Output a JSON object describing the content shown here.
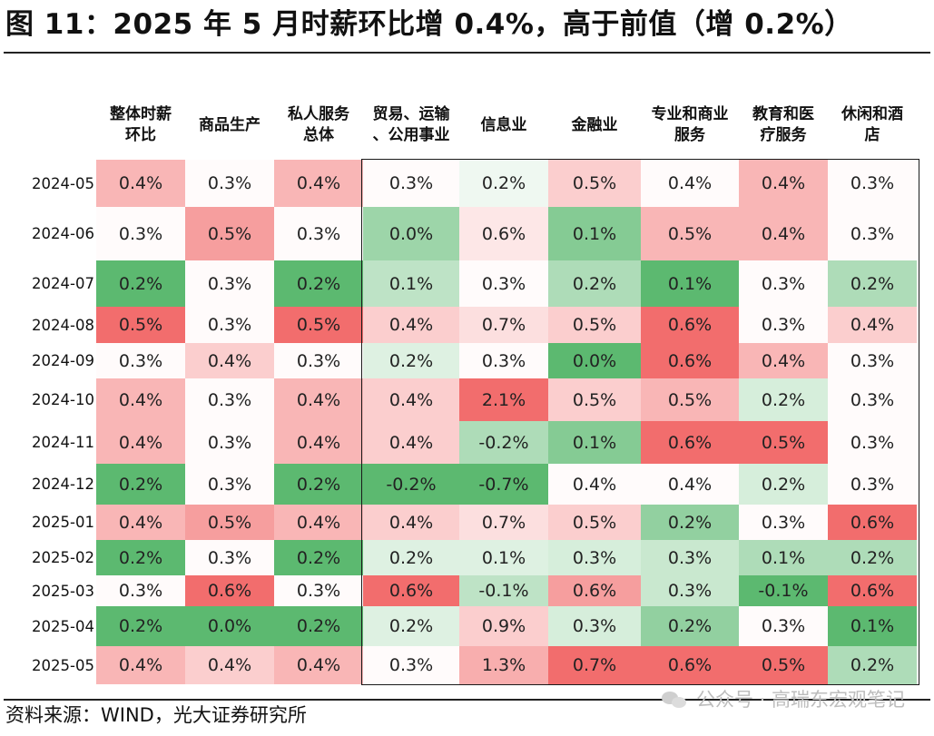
{
  "title": "图 11：2025 年 5 月时薪环比增 0.4%，高于前值（增 0.2%）",
  "source": "资料来源：WIND，光大证券研究所",
  "watermark": "公众号 · 高瑞东宏观笔记",
  "watermark_icon": "wechat-icon",
  "colors": {
    "high": "#f26d6d",
    "low": "#5cb970",
    "mid": "#ffffff",
    "text": "#222222"
  },
  "chart_data": {
    "type": "heatmap",
    "title": "图 11：2025 年 5 月时薪环比增 0.4%，高于前值（增 0.2%）",
    "value_unit": "%",
    "color_scale": "column-wise, red = higher, green = lower",
    "columns": [
      {
        "label_lines": [
          "整体时薪",
          "环比"
        ]
      },
      {
        "label_lines": [
          "商品生产"
        ]
      },
      {
        "label_lines": [
          "私人服务",
          "总体"
        ]
      },
      {
        "label_lines": [
          "贸易、运输",
          "、公用事业"
        ]
      },
      {
        "label_lines": [
          "信息业"
        ]
      },
      {
        "label_lines": [
          "金融业"
        ]
      },
      {
        "label_lines": [
          "专业和商业",
          "服务"
        ]
      },
      {
        "label_lines": [
          "教育和医",
          "疗服务"
        ]
      },
      {
        "label_lines": [
          "休闲和酒",
          "店"
        ]
      }
    ],
    "rows": [
      "2024-05",
      "2024-06",
      "2024-07",
      "2024-08",
      "2024-09",
      "2024-10",
      "2024-11",
      "2024-12",
      "2025-01",
      "2025-02",
      "2025-03",
      "2025-04",
      "2025-05"
    ],
    "values": [
      [
        0.4,
        0.3,
        0.4,
        0.3,
        0.2,
        0.5,
        0.4,
        0.4,
        0.3
      ],
      [
        0.3,
        0.5,
        0.3,
        0.0,
        0.6,
        0.1,
        0.5,
        0.4,
        0.3
      ],
      [
        0.2,
        0.3,
        0.2,
        0.1,
        0.3,
        0.2,
        0.1,
        0.3,
        0.2
      ],
      [
        0.5,
        0.3,
        0.5,
        0.4,
        0.7,
        0.5,
        0.6,
        0.3,
        0.4
      ],
      [
        0.3,
        0.4,
        0.3,
        0.2,
        0.3,
        0.0,
        0.6,
        0.4,
        0.3
      ],
      [
        0.4,
        0.3,
        0.4,
        0.4,
        2.1,
        0.5,
        0.5,
        0.2,
        0.3
      ],
      [
        0.4,
        0.3,
        0.4,
        0.4,
        -0.2,
        0.1,
        0.6,
        0.5,
        0.3
      ],
      [
        0.2,
        0.3,
        0.2,
        -0.2,
        -0.7,
        0.4,
        0.4,
        0.2,
        0.3
      ],
      [
        0.4,
        0.5,
        0.4,
        0.4,
        0.7,
        0.5,
        0.2,
        0.3,
        0.6
      ],
      [
        0.2,
        0.3,
        0.2,
        0.2,
        0.1,
        0.3,
        0.3,
        0.1,
        0.2
      ],
      [
        0.3,
        0.6,
        0.3,
        0.6,
        -0.1,
        0.6,
        0.3,
        -0.1,
        0.6
      ],
      [
        0.2,
        0.0,
        0.2,
        0.2,
        0.9,
        0.3,
        0.2,
        0.3,
        0.1
      ],
      [
        0.4,
        0.4,
        0.4,
        0.3,
        1.3,
        0.7,
        0.6,
        0.5,
        0.2
      ]
    ]
  }
}
